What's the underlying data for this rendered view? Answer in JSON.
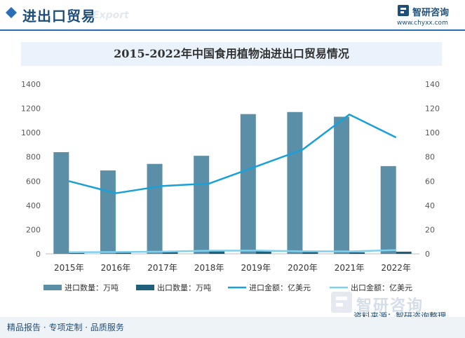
{
  "header": {
    "title": "进出口贸易",
    "watermark": "Export",
    "brand_name": "智研咨询",
    "brand_url": "www.chyxx.com",
    "accent_color": "#2a6fb5",
    "icon": "diamond-icon"
  },
  "chart_data": {
    "type": "bar",
    "title": "2015-2022年中国食用植物油进出口贸易情况",
    "categories": [
      "2015年",
      "2016年",
      "2017年",
      "2018年",
      "2019年",
      "2020年",
      "2021年",
      "2022年"
    ],
    "left_axis": {
      "ylim": [
        0,
        1400
      ],
      "ticks": [
        "0",
        "200",
        "400",
        "600",
        "800",
        "1000",
        "1200",
        "1400"
      ]
    },
    "right_axis": {
      "ylim": [
        0,
        140
      ],
      "ticks": [
        "0",
        "20",
        "40",
        "60",
        "80",
        "100",
        "120",
        "140"
      ]
    },
    "grid": false,
    "legend_position": "bottom",
    "series": [
      {
        "name": "进口数量：万吨",
        "kind": "bar",
        "axis": "left",
        "color": "#5b8fa8",
        "values": [
          839,
          688,
          742,
          809,
          1153,
          1170,
          1131,
          724
        ]
      },
      {
        "name": "出口数量：万吨",
        "kind": "bar",
        "axis": "left",
        "color": "#1f5f7a",
        "values": [
          11,
          11,
          20,
          30,
          27,
          17,
          13,
          18
        ]
      },
      {
        "name": "进口金额：亿美元",
        "kind": "line",
        "axis": "right",
        "color": "#18a0d8",
        "values": [
          60,
          50,
          56,
          58,
          72,
          86,
          115,
          96
        ]
      },
      {
        "name": "出口金额：亿美元",
        "kind": "line",
        "axis": "right",
        "color": "#7fd0ee",
        "values": [
          1.3,
          1.5,
          1.8,
          2.6,
          2.7,
          2.1,
          2.0,
          3.1
        ]
      }
    ]
  },
  "footer": {
    "text": "精品报告 · 专项定制 · 品质服务",
    "source": "资料来源：智研咨询整理",
    "brand": "智研咨询"
  }
}
